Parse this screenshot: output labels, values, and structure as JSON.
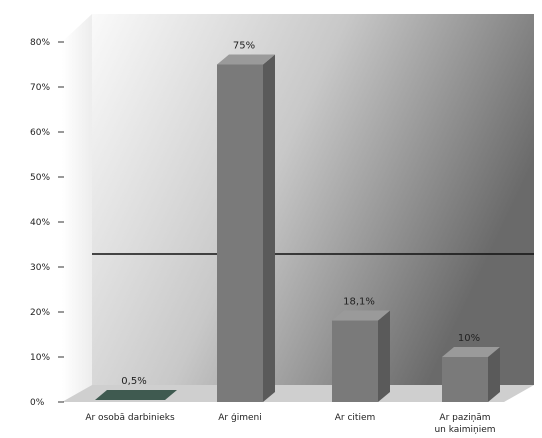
{
  "chart_data": {
    "type": "bar",
    "title": "",
    "xlabel": "",
    "ylabel": "",
    "categories": [
      "Ar osobā darbinieks",
      "Ar ģimeni",
      "Ar citiem",
      "Ar paziņām un kaimiņiem"
    ],
    "values": [
      0.5,
      75,
      18.1,
      10
    ],
    "data_labels": [
      "0,5%",
      "75%",
      "18,1%",
      "10%"
    ],
    "ylim": [
      0,
      80
    ],
    "yticks": [
      0,
      10,
      20,
      30,
      40,
      50,
      60,
      70,
      80
    ],
    "ytick_labels": [
      "0%",
      "10%",
      "20%",
      "30%",
      "40%",
      "50%",
      "60%",
      "70%",
      "80%"
    ],
    "reference_line": 30,
    "three_d": true,
    "grid": false,
    "legend": "none",
    "colors": {
      "bar_front": "#7a7a7a",
      "bar_side": "#5a5a5a",
      "bar_top": "#9a9a9a",
      "wall_light": "#f7f7f7",
      "wall_dark": "#6f6f6f",
      "floor": "#cfcfcf",
      "reference_line": "#111111"
    }
  }
}
